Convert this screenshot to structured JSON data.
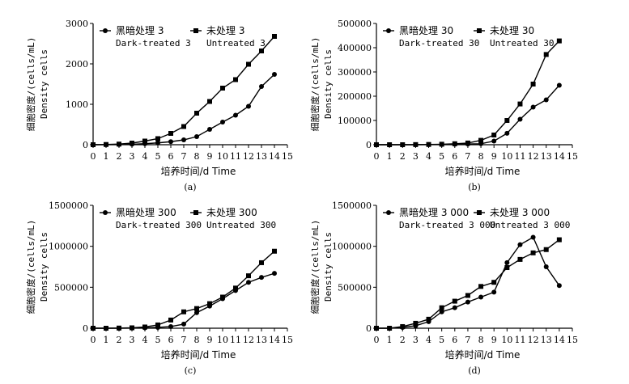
{
  "figure": {
    "ylabel": "细胞密度/(cells/mL)",
    "ylabel_en": "Density cells",
    "xlabel": "培养时间/d Time"
  },
  "chart_data": [
    {
      "type": "line",
      "panel": "(a)",
      "x": [
        0,
        1,
        2,
        3,
        4,
        5,
        6,
        7,
        8,
        9,
        10,
        11,
        12,
        13,
        14
      ],
      "xlim": [
        0,
        15
      ],
      "ylim": [
        0,
        3000
      ],
      "yticks": [
        0,
        1000,
        2000,
        3000
      ],
      "ytick_labels": [
        "0",
        "1000",
        "2000",
        "3000"
      ],
      "xtick_labels": [
        "0",
        "1",
        "2",
        "3",
        "4",
        "5",
        "6",
        "7",
        "8",
        "9",
        "10",
        "11",
        "12",
        "13",
        "14",
        "15"
      ],
      "xlabel": "培养时间/d Time",
      "ylabel": "细胞密度/(cells/mL)  Density cells",
      "legend_position": "top-left",
      "series": [
        {
          "name": "黑暗处理 3",
          "name_en": "Dark-treated 3",
          "marker": "circle",
          "values": [
            0,
            2,
            5,
            12,
            25,
            45,
            75,
            120,
            200,
            380,
            560,
            730,
            950,
            1440,
            1740
          ]
        },
        {
          "name": "未处理 3",
          "name_en": "Untreated 3",
          "marker": "square",
          "values": [
            0,
            5,
            15,
            40,
            90,
            150,
            280,
            450,
            780,
            1070,
            1400,
            1610,
            1990,
            2320,
            2680
          ]
        }
      ]
    },
    {
      "type": "line",
      "panel": "(b)",
      "x": [
        0,
        1,
        2,
        3,
        4,
        5,
        6,
        7,
        8,
        9,
        10,
        11,
        12,
        13,
        14
      ],
      "xlim": [
        0,
        15
      ],
      "ylim": [
        0,
        500000
      ],
      "yticks": [
        0,
        100000,
        200000,
        300000,
        400000,
        500000
      ],
      "ytick_labels": [
        "0",
        "100000",
        "200000",
        "300000",
        "400000",
        "500000"
      ],
      "xtick_labels": [
        "0",
        "1",
        "2",
        "3",
        "4",
        "5",
        "6",
        "7",
        "8",
        "9",
        "10",
        "11",
        "12",
        "13",
        "14",
        "15"
      ],
      "xlabel": "培养时间/d Time",
      "ylabel": "细胞密度/(cells/mL)  Density cells",
      "legend_position": "top-left",
      "series": [
        {
          "name": "黑暗处理 30",
          "name_en": "Dark-treated 30",
          "marker": "circle",
          "values": [
            0,
            0,
            0,
            0,
            500,
            1000,
            2000,
            3000,
            4000,
            15000,
            47000,
            105000,
            155000,
            185000,
            245000
          ]
        },
        {
          "name": "未处理 30",
          "name_en": "Untreated 30",
          "marker": "square",
          "values": [
            0,
            0,
            0,
            500,
            1000,
            2000,
            4000,
            7000,
            18000,
            40000,
            100000,
            168000,
            250000,
            372000,
            428000
          ]
        }
      ]
    },
    {
      "type": "line",
      "panel": "(c)",
      "x": [
        0,
        1,
        2,
        3,
        4,
        5,
        6,
        7,
        8,
        9,
        10,
        11,
        12,
        13,
        14
      ],
      "xlim": [
        0,
        15
      ],
      "ylim": [
        0,
        1500000
      ],
      "yticks": [
        0,
        500000,
        1000000,
        1500000
      ],
      "ytick_labels": [
        "0",
        "500000",
        "1000000",
        "1500000"
      ],
      "xtick_labels": [
        "0",
        "1",
        "2",
        "3",
        "4",
        "5",
        "6",
        "7",
        "8",
        "9",
        "10",
        "11",
        "12",
        "13",
        "14",
        "15"
      ],
      "xlabel": "培养时间/d Time",
      "ylabel": "细胞密度/(cells/mL)  Density cells",
      "legend_position": "top-left",
      "series": [
        {
          "name": "黑暗处理 300",
          "name_en": "Dark-treated 300",
          "marker": "circle",
          "values": [
            0,
            0,
            0,
            2000,
            5000,
            10000,
            20000,
            50000,
            190000,
            270000,
            360000,
            460000,
            560000,
            620000,
            670000
          ]
        },
        {
          "name": "未处理 300",
          "name_en": "Untreated 300",
          "marker": "square",
          "values": [
            0,
            0,
            2000,
            5000,
            15000,
            40000,
            100000,
            200000,
            240000,
            300000,
            380000,
            490000,
            640000,
            800000,
            940000
          ]
        }
      ]
    },
    {
      "type": "line",
      "panel": "(d)",
      "x": [
        0,
        1,
        2,
        3,
        4,
        5,
        6,
        7,
        8,
        9,
        10,
        11,
        12,
        13,
        14
      ],
      "xlim": [
        0,
        15
      ],
      "ylim": [
        0,
        1500000
      ],
      "yticks": [
        0,
        500000,
        1000000,
        1500000
      ],
      "ytick_labels": [
        "0",
        "500000",
        "1000000",
        "1500000"
      ],
      "xtick_labels": [
        "0",
        "1",
        "2",
        "3",
        "4",
        "5",
        "6",
        "7",
        "8",
        "9",
        "10",
        "11",
        "12",
        "13",
        "14",
        "15"
      ],
      "xlabel": "培养时间/d Time",
      "ylabel": "细胞密度/(cells/mL)  Density cells",
      "legend_position": "top-left",
      "series": [
        {
          "name": "黑暗处理 3 000",
          "name_en": "Dark-treated 3 000",
          "marker": "circle",
          "values": [
            0,
            0,
            10000,
            30000,
            80000,
            200000,
            250000,
            320000,
            380000,
            440000,
            800000,
            1020000,
            1110000,
            750000,
            520000
          ]
        },
        {
          "name": "未处理 3 000",
          "name_en": "Untreated 3 000",
          "marker": "square",
          "values": [
            0,
            0,
            20000,
            60000,
            110000,
            250000,
            330000,
            400000,
            510000,
            560000,
            740000,
            840000,
            920000,
            960000,
            1080000
          ]
        }
      ]
    }
  ]
}
